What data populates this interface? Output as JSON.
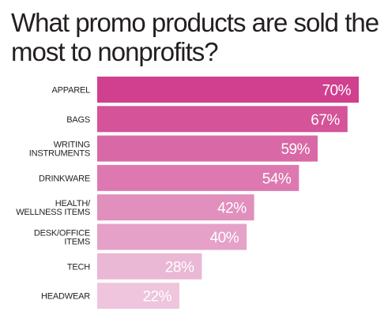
{
  "chart_data": {
    "type": "bar",
    "orientation": "horizontal",
    "title": "What promo products are sold the most to nonprofits?",
    "categories": [
      "APPAREL",
      "BAGS",
      "WRITING INSTRUMENTS",
      "DRINKWARE",
      "HEALTH/ WELLNESS ITEMS",
      "DESK/OFFICE ITEMS",
      "TECH",
      "HEADWEAR"
    ],
    "category_lines": [
      [
        "APPAREL"
      ],
      [
        "BAGS"
      ],
      [
        "WRITING",
        "INSTRUMENTS"
      ],
      [
        "DRINKWARE"
      ],
      [
        "HEALTH/",
        "WELLNESS ITEMS"
      ],
      [
        "DESK/OFFICE",
        "ITEMS"
      ],
      [
        "TECH"
      ],
      [
        "HEADWEAR"
      ]
    ],
    "values": [
      70,
      67,
      59,
      54,
      42,
      40,
      28,
      22
    ],
    "value_labels": [
      "70%",
      "67%",
      "59%",
      "54%",
      "42%",
      "40%",
      "28%",
      "22%"
    ],
    "unit": "%",
    "xlim": [
      0,
      70
    ],
    "grid": false,
    "legend": "none",
    "colors": [
      "#d0408f",
      "#d45399",
      "#d968a6",
      "#dd79b0",
      "#e18fbd",
      "#e5a1c8",
      "#eab7d5",
      "#eec5dd"
    ]
  }
}
